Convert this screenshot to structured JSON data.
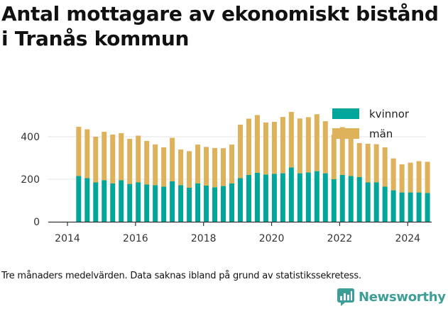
{
  "brand": {
    "name": "Newsworthy"
  },
  "colors": {
    "kvinnor": "#00a69a",
    "man": "#ddb25b",
    "axis": "#333333",
    "grid": "#e3e3e3",
    "brand": "#3d9e97"
  },
  "chart_data": {
    "type": "bar",
    "stacked": true,
    "title": "Antal mottagare av ekonomiskt bistånd i Tranås kommun",
    "note": "Tre månaders medelvärden. Data saknas ibland på grund av statistikssekretess.",
    "xlabel": "",
    "ylabel": "",
    "x_ticks": [
      "2014",
      "2016",
      "2018",
      "2020",
      "2022",
      "2024"
    ],
    "y_ticks": [
      0,
      200,
      400
    ],
    "ylim": [
      0,
      540
    ],
    "xlim": [
      2014.0,
      2025.1
    ],
    "grid": true,
    "legend": "top-right",
    "x": [
      2014.33,
      2014.58,
      2014.83,
      2015.08,
      2015.33,
      2015.58,
      2015.83,
      2016.08,
      2016.33,
      2016.58,
      2016.83,
      2017.08,
      2017.33,
      2017.58,
      2017.83,
      2018.08,
      2018.33,
      2018.58,
      2018.83,
      2019.08,
      2019.33,
      2019.58,
      2019.83,
      2020.08,
      2020.33,
      2020.58,
      2020.83,
      2021.08,
      2021.33,
      2021.58,
      2021.83,
      2022.08,
      2022.33,
      2022.58,
      2022.83,
      2023.08,
      2023.33,
      2023.58,
      2023.83,
      2024.08,
      2024.33,
      2024.58
    ],
    "series": [
      {
        "name": "kvinnor",
        "values": [
          215,
          205,
          185,
          195,
          180,
          195,
          178,
          185,
          175,
          172,
          165,
          190,
          172,
          160,
          180,
          170,
          162,
          168,
          180,
          205,
          220,
          230,
          222,
          225,
          228,
          255,
          228,
          232,
          238,
          228,
          200,
          220,
          215,
          210,
          185,
          185,
          165,
          148,
          138,
          138,
          138,
          135
        ]
      },
      {
        "name": "män",
        "values": [
          232,
          230,
          215,
          228,
          230,
          222,
          212,
          220,
          205,
          192,
          185,
          205,
          168,
          172,
          183,
          182,
          185,
          178,
          183,
          252,
          265,
          272,
          245,
          245,
          265,
          262,
          258,
          260,
          268,
          245,
          210,
          225,
          195,
          160,
          182,
          180,
          185,
          150,
          132,
          140,
          147,
          147
        ]
      }
    ]
  }
}
